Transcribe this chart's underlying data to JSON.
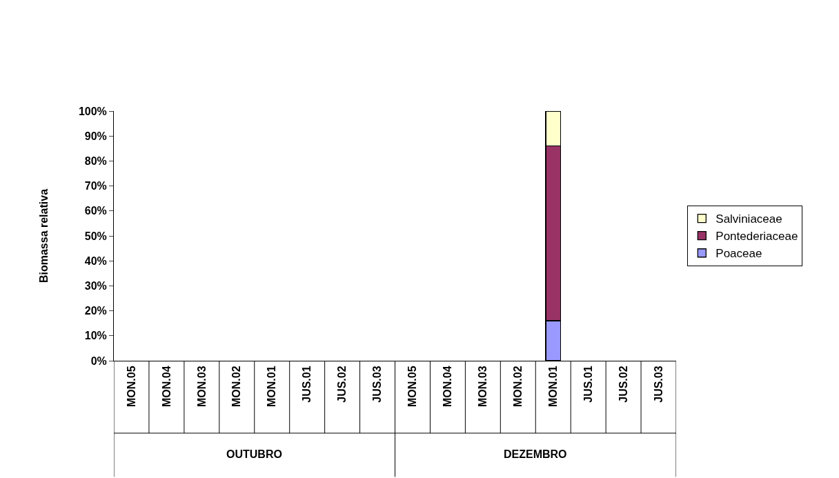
{
  "chart_data": {
    "type": "bar",
    "stacked": true,
    "ylabel": "Biomassa relativa",
    "categories": [
      "MON.05",
      "MON.04",
      "MON.03",
      "MON.02",
      "MON.01",
      "JUS.01",
      "JUS.02",
      "JUS.03",
      "MON.05",
      "MON.04",
      "MON.03",
      "MON.02",
      "MON.01",
      "JUS.01",
      "JUS.02",
      "JUS.03"
    ],
    "series": [
      {
        "name": "Poaceae",
        "color": "#9999ff",
        "values": [
          null,
          null,
          null,
          null,
          null,
          null,
          null,
          null,
          null,
          null,
          null,
          null,
          16,
          null,
          null,
          null
        ]
      },
      {
        "name": "Pontederiaceae",
        "color": "#993366",
        "values": [
          null,
          null,
          null,
          null,
          null,
          null,
          null,
          null,
          null,
          null,
          null,
          null,
          70,
          null,
          null,
          null
        ]
      },
      {
        "name": "Salviniaceae",
        "color": "#ffffcc",
        "values": [
          null,
          null,
          null,
          null,
          null,
          null,
          null,
          null,
          null,
          null,
          null,
          null,
          14,
          null,
          null,
          null
        ]
      }
    ],
    "ylim": [
      0,
      100
    ],
    "yticks": [
      {
        "value": 0,
        "label": "0%"
      },
      {
        "value": 10,
        "label": "10%"
      },
      {
        "value": 20,
        "label": "20%"
      },
      {
        "value": 30,
        "label": "30%"
      },
      {
        "value": 40,
        "label": "40%"
      },
      {
        "value": 50,
        "label": "50%"
      },
      {
        "value": 60,
        "label": "60%"
      },
      {
        "value": 70,
        "label": "70%"
      },
      {
        "value": 80,
        "label": "80%"
      },
      {
        "value": 90,
        "label": "90%"
      },
      {
        "value": 100,
        "label": "100%"
      }
    ],
    "annotations": [
      "OUTUBRO",
      "DEZEMBRO"
    ],
    "legend": "right",
    "grid": false
  }
}
